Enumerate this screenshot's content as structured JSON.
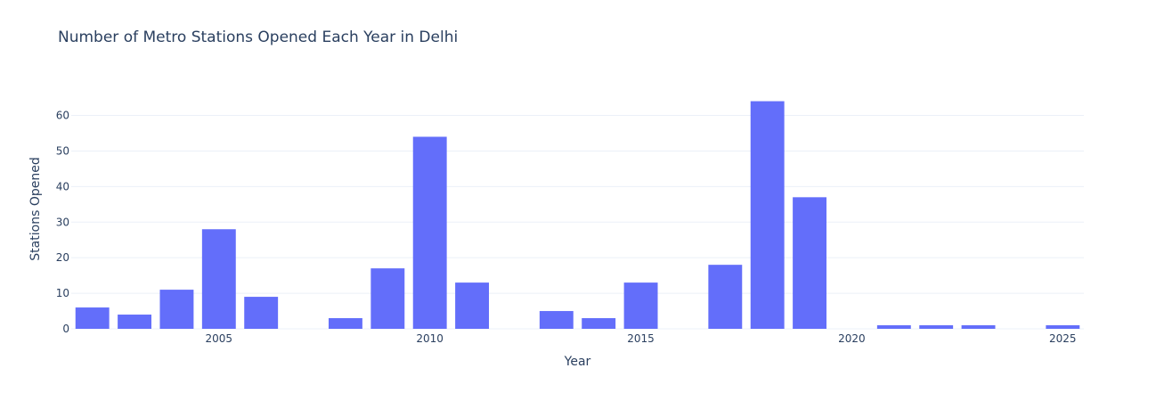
{
  "chart_data": {
    "type": "bar",
    "title": "Number of Metro Stations Opened Each Year in Delhi",
    "xlabel": "Year",
    "ylabel": "Stations Opened",
    "x": [
      2002,
      2003,
      2004,
      2005,
      2006,
      2007,
      2008,
      2009,
      2010,
      2011,
      2012,
      2013,
      2014,
      2015,
      2016,
      2017,
      2018,
      2019,
      2020,
      2021,
      2022,
      2023,
      2024,
      2025
    ],
    "values": [
      6,
      4,
      11,
      28,
      9,
      0,
      3,
      17,
      54,
      13,
      0,
      5,
      3,
      13,
      0,
      18,
      64,
      37,
      0,
      1,
      1,
      1,
      0,
      1
    ],
    "x_ticks": [
      2005,
      2010,
      2015,
      2020,
      2025
    ],
    "y_ticks": [
      0,
      10,
      20,
      30,
      40,
      50,
      60
    ],
    "xlim": [
      2001.5,
      2025.5
    ],
    "ylim": [
      0,
      67.4
    ],
    "bar_color": "#636efa",
    "grid": true,
    "legend": false
  }
}
